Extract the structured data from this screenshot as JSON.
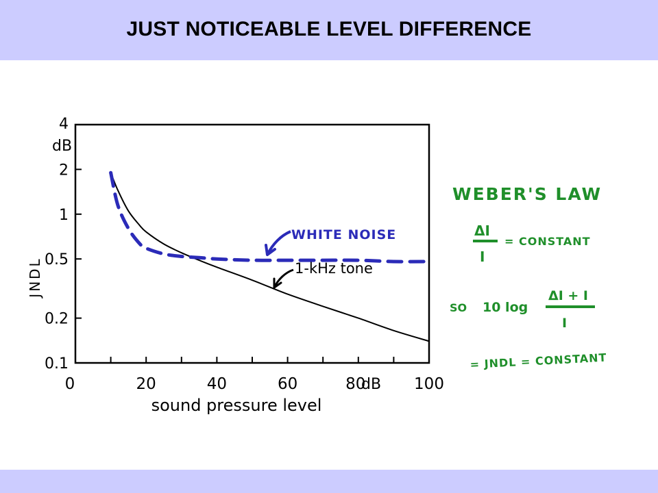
{
  "slide": {
    "title": "JUST NOTICEABLE LEVEL DIFFERENCE",
    "band_color": "#ccccff"
  },
  "chart_data": {
    "type": "line",
    "xlabel": "sound pressure level",
    "ylabel": "JNDL",
    "y_unit": "dB",
    "x_unit": "dB",
    "xlim": [
      0,
      100
    ],
    "ylim": [
      0.1,
      4
    ],
    "y_scale": "log",
    "x_ticks": [
      0,
      20,
      40,
      60,
      80,
      100
    ],
    "x_tick_labels": [
      "0",
      "20",
      "40",
      "60",
      "80",
      "100"
    ],
    "y_ticks": [
      0.1,
      0.2,
      0.5,
      1,
      2,
      4
    ],
    "y_tick_labels": [
      "0.1",
      "0.2",
      "0.5",
      "1",
      "2",
      "4"
    ],
    "grid": false,
    "series": [
      {
        "name": "1-kHz tone",
        "color": "#000000",
        "style": "solid",
        "x": [
          10,
          12,
          15,
          18,
          20,
          25,
          30,
          35,
          40,
          50,
          60,
          70,
          80,
          90,
          100
        ],
        "y": [
          1.9,
          1.45,
          1.05,
          0.85,
          0.76,
          0.63,
          0.55,
          0.49,
          0.44,
          0.36,
          0.29,
          0.24,
          0.2,
          0.165,
          0.14
        ]
      },
      {
        "name": "WHITE NOISE",
        "color": "#2b2bb8",
        "style": "dashed",
        "x": [
          10,
          12,
          15,
          18,
          20,
          25,
          30,
          35,
          40,
          50,
          60,
          70,
          80,
          90,
          100
        ],
        "y": [
          1.9,
          1.15,
          0.8,
          0.64,
          0.59,
          0.54,
          0.52,
          0.51,
          0.5,
          0.49,
          0.49,
          0.49,
          0.49,
          0.48,
          0.48
        ]
      }
    ]
  },
  "notes": {
    "heading": "WEBER'S LAW",
    "delta_i": "ΔI",
    "i": "I",
    "equals_constant": "= CONSTANT",
    "so": "SO",
    "ten_log": "10 log",
    "delta_i_plus_i": "ΔI + I",
    "i_denominator": "I",
    "jndl_line": "= JNDL = CONSTANT",
    "color": "#1f8f2a"
  }
}
